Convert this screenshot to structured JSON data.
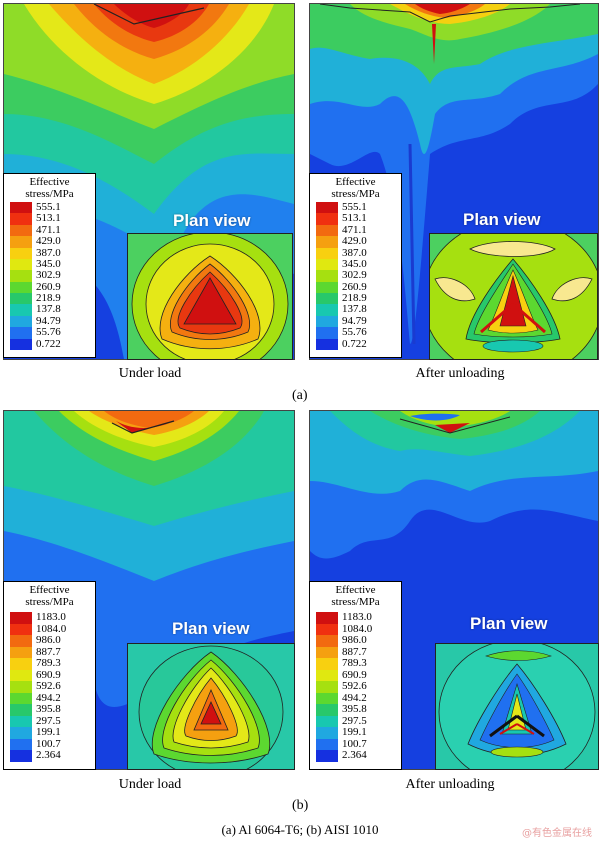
{
  "legend_colors": [
    "#d01010",
    "#f03010",
    "#f26a10",
    "#f5a010",
    "#f8d010",
    "#e0e810",
    "#a6e010",
    "#5cd830",
    "#28c86a",
    "#18c8b0",
    "#20a8e0",
    "#2070f0",
    "#1530e0"
  ],
  "panel_a_left": {
    "legend_title": "Effective stress/MPa",
    "legend_values": [
      "555.1",
      "513.1",
      "471.1",
      "429.0",
      "387.0",
      "345.0",
      "302.9",
      "260.9",
      "218.9",
      "137.8",
      "94.79",
      "55.76",
      "0.722"
    ],
    "inset_title": "Plan view",
    "caption": "Under load"
  },
  "panel_a_right": {
    "legend_title": "Effective stress/MPa",
    "legend_values": [
      "555.1",
      "513.1",
      "471.1",
      "429.0",
      "387.0",
      "345.0",
      "302.9",
      "260.9",
      "218.9",
      "137.8",
      "94.79",
      "55.76",
      "0.722"
    ],
    "inset_title": "Plan view",
    "caption": "After unloading"
  },
  "panel_b_left": {
    "legend_title": "Effective stress/MPa",
    "legend_values": [
      "1183.0",
      "1084.0",
      "986.0",
      "887.7",
      "789.3",
      "690.9",
      "592.6",
      "494.2",
      "395.8",
      "297.5",
      "199.1",
      "100.7",
      "2.364"
    ],
    "inset_title": "Plan view",
    "caption": "Under load"
  },
  "panel_b_right": {
    "legend_title": "Effective stress/MPa",
    "legend_values": [
      "1183.0",
      "1084.0",
      "986.0",
      "887.7",
      "789.3",
      "690.9",
      "592.6",
      "494.2",
      "395.8",
      "297.5",
      "199.1",
      "100.7",
      "2.364"
    ],
    "inset_title": "Plan view",
    "caption": "After unloading"
  },
  "label_a": "(a)",
  "label_b": "(b)",
  "figure_caption": "(a) Al 6064-T6; (b) AISI 1010",
  "watermark": "@有色金属在线"
}
